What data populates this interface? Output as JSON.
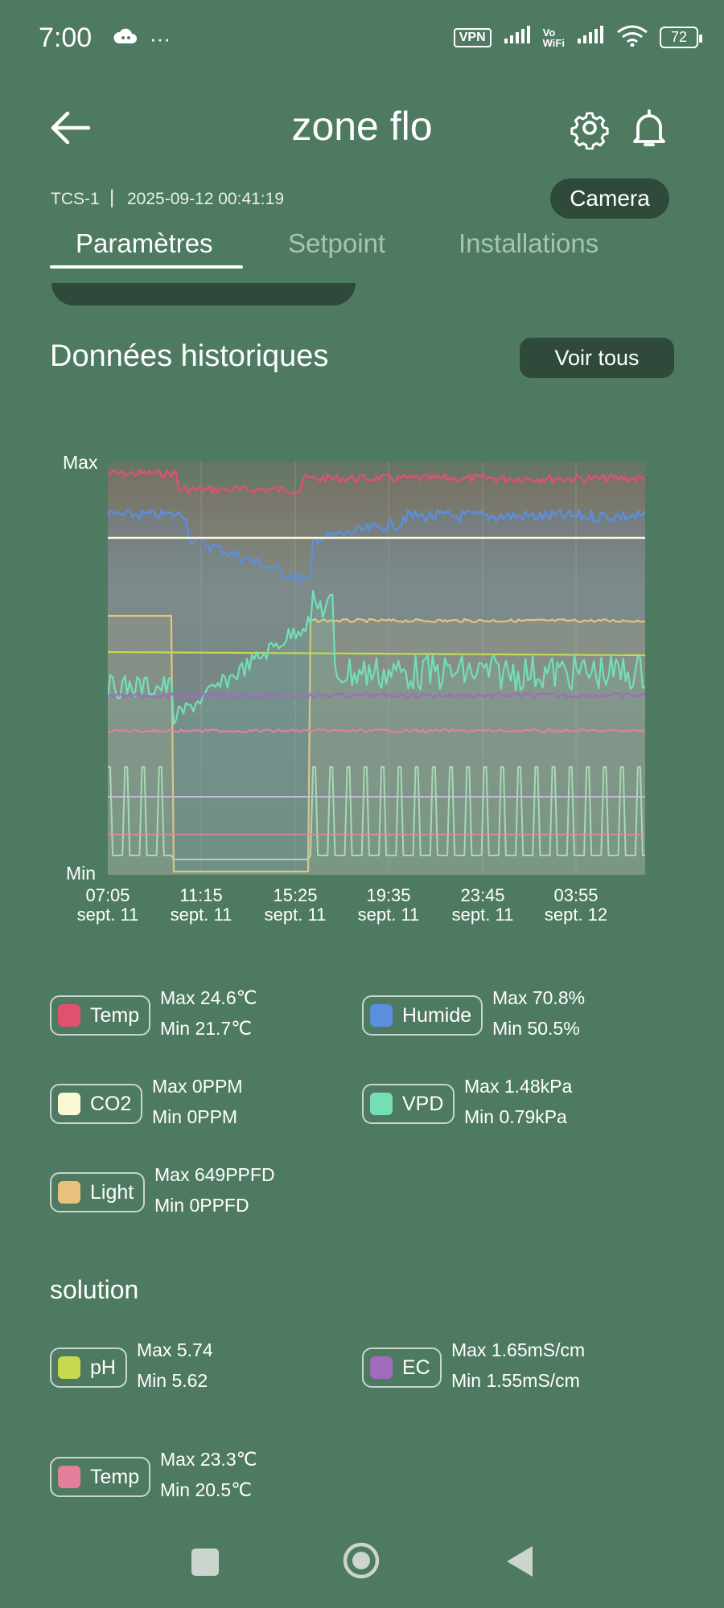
{
  "status_bar": {
    "time": "7:00",
    "icons_left": [
      "cloud-icon",
      "more-dots-icon"
    ],
    "vpn": "VPN",
    "vowifi_top": "Vo",
    "vowifi_bottom": "WiFi",
    "battery": "72"
  },
  "header": {
    "title": "zone flo",
    "back_icon": "arrow-left-icon",
    "settings_icon": "gear-icon",
    "notifications_icon": "bell-icon",
    "device_id": "TCS-1",
    "separator": "|",
    "timestamp": "2025-09-12 00:41:19",
    "camera_label": "Camera"
  },
  "tabs": [
    {
      "label": "Paramètres",
      "active": true
    },
    {
      "label": "Setpoint",
      "active": false
    },
    {
      "label": "Installations",
      "active": false
    }
  ],
  "history": {
    "title": "Données historiques",
    "view_all_label": "Voir tous",
    "axis_max_label": "Max",
    "axis_min_label": "Min"
  },
  "chart_data": {
    "type": "line",
    "x_ticks": [
      {
        "time": "07:05",
        "date": "sept. 11"
      },
      {
        "time": "11:15",
        "date": "sept. 11"
      },
      {
        "time": "15:25",
        "date": "sept. 11"
      },
      {
        "time": "19:35",
        "date": "sept. 11"
      },
      {
        "time": "23:45",
        "date": "sept. 11"
      },
      {
        "time": "03:55",
        "date": "sept. 12"
      }
    ],
    "y_labels": [
      "Min",
      "Max"
    ],
    "grid": true,
    "series_colors": {
      "temp": "#e0516e",
      "humide": "#5b8fde",
      "co2": "#fbf8d4",
      "vpd": "#74dfb6",
      "light": "#e8c27d",
      "ph": "#c7d94f",
      "ec": "#a16bbb",
      "solution_temp": "#e2809b"
    }
  },
  "legend": [
    {
      "label": "Temp",
      "color": "#e0516e",
      "max": "Max 24.6℃",
      "min": "Min 21.7℃"
    },
    {
      "label": "Humide",
      "color": "#5b8fde",
      "max": "Max 70.8%",
      "min": "Min 50.5%"
    },
    {
      "label": "CO2",
      "color": "#fbf8d4",
      "max": "Max 0PPM",
      "min": "Min 0PPM"
    },
    {
      "label": "VPD",
      "color": "#74dfb6",
      "max": "Max 1.48kPa",
      "min": "Min 0.79kPa"
    },
    {
      "label": "Light",
      "color": "#e8c27d",
      "max": "Max 649PPFD",
      "min": "Min 0PPFD"
    }
  ],
  "solution": {
    "title": "solution",
    "items": [
      {
        "label": "pH",
        "color": "#c7d94f",
        "max": "Max 5.74",
        "min": "Min 5.62"
      },
      {
        "label": "EC",
        "color": "#a16bbb",
        "max": "Max 1.65mS/cm",
        "min": "Min 1.55mS/cm"
      },
      {
        "label": "Temp",
        "color": "#e2809b",
        "max": "Max 23.3℃",
        "min": "Min 20.5℃"
      }
    ]
  },
  "nav_bar": {
    "recents_icon": "square-icon",
    "home_icon": "circle-home-icon",
    "back_icon": "triangle-back-icon"
  }
}
